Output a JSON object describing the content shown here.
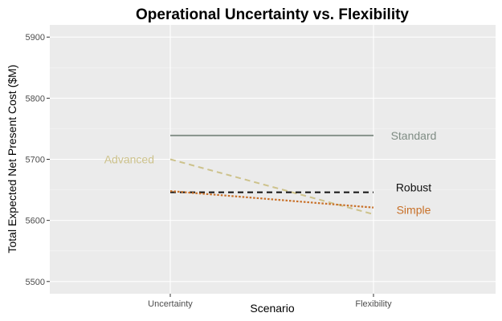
{
  "chart_data": {
    "type": "line",
    "title": "Operational Uncertainty vs. Flexibility",
    "xlabel": "Scenario",
    "ylabel": "Total Expected Net Present Cost ($M)",
    "categories": [
      "Uncertainty",
      "Flexibility"
    ],
    "ylim": [
      5480,
      5920
    ],
    "yticks": [
      5500,
      5600,
      5700,
      5800,
      5900
    ],
    "ytick_labels": [
      "5500",
      "5600",
      "5700",
      "5800",
      "5900"
    ],
    "grid": true,
    "legend": "none",
    "series": [
      {
        "name": "Standard",
        "values": [
          5739,
          5739
        ],
        "color": "#7f8c84",
        "dash": "solid",
        "label_at": "right"
      },
      {
        "name": "Advanced",
        "values": [
          5700,
          5610
        ],
        "color": "#cdc28b",
        "dash": "dashed",
        "label_at": "left"
      },
      {
        "name": "Robust",
        "values": [
          5646,
          5646
        ],
        "color": "#111111",
        "dash": "dashed",
        "label_at": "right"
      },
      {
        "name": "Simple",
        "values": [
          5648,
          5621
        ],
        "color": "#c87028",
        "dash": "dotted",
        "label_at": "right"
      }
    ]
  }
}
